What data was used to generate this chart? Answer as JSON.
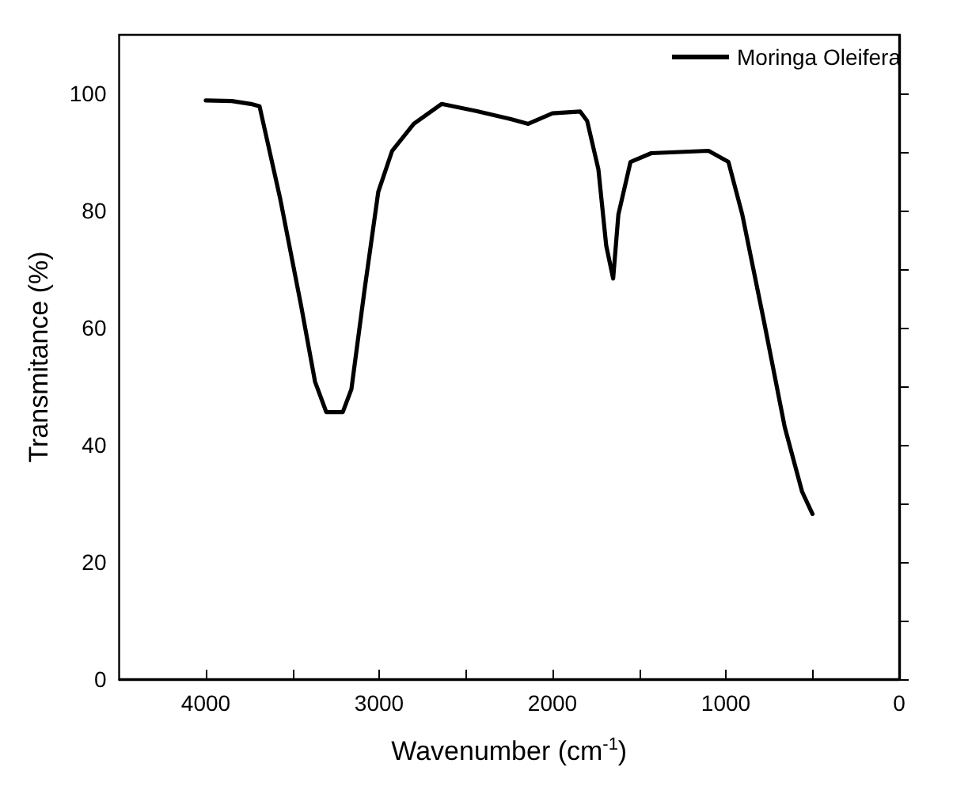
{
  "chart_data": {
    "type": "line",
    "xlabel": "Wavenumber (cm$^{-1}$)",
    "ylabel": "Transmitance (%)",
    "series": [
      {
        "name": "Moringa Oleifera",
        "color": "#000000",
        "x": [
          4000,
          3850,
          3740,
          3690,
          3570,
          3450,
          3370,
          3305,
          3210,
          3160,
          3085,
          3005,
          2925,
          2800,
          2640,
          2440,
          2240,
          2140,
          2000,
          1840,
          1800,
          1735,
          1690,
          1650,
          1620,
          1550,
          1430,
          1100,
          985,
          905,
          780,
          660,
          560,
          500
        ],
        "values": [
          98.8,
          98.7,
          98.2,
          97.8,
          81.9,
          63.7,
          50.8,
          45.6,
          45.6,
          49.5,
          66.3,
          83.2,
          90.2,
          94.8,
          98.2,
          97.0,
          95.6,
          94.8,
          96.6,
          96.9,
          95.3,
          87,
          74,
          68.4,
          79.3,
          88.3,
          89.8,
          90.2,
          88.3,
          79.3,
          61.1,
          43,
          32,
          28.2
        ]
      }
    ],
    "xlim": [
      4500,
      0
    ],
    "xticks": [
      4000,
      {
        "value": 3500,
        "label": null
      },
      3000,
      {
        "value": 2500,
        "label": null
      },
      2000,
      {
        "value": 1500,
        "label": null
      },
      1000,
      {
        "value": 500,
        "label": null
      },
      0
    ],
    "ylim": [
      0,
      110
    ],
    "yticks": [
      0,
      {
        "value": 10,
        "label": null
      },
      20,
      {
        "value": 30,
        "label": null
      },
      40,
      {
        "value": 50,
        "label": null
      },
      60,
      {
        "value": 70,
        "label": null
      },
      80,
      {
        "value": 90,
        "label": null
      },
      100
    ],
    "grid": false,
    "legend": "top right",
    "marker": "none",
    "line_style": "solid"
  }
}
